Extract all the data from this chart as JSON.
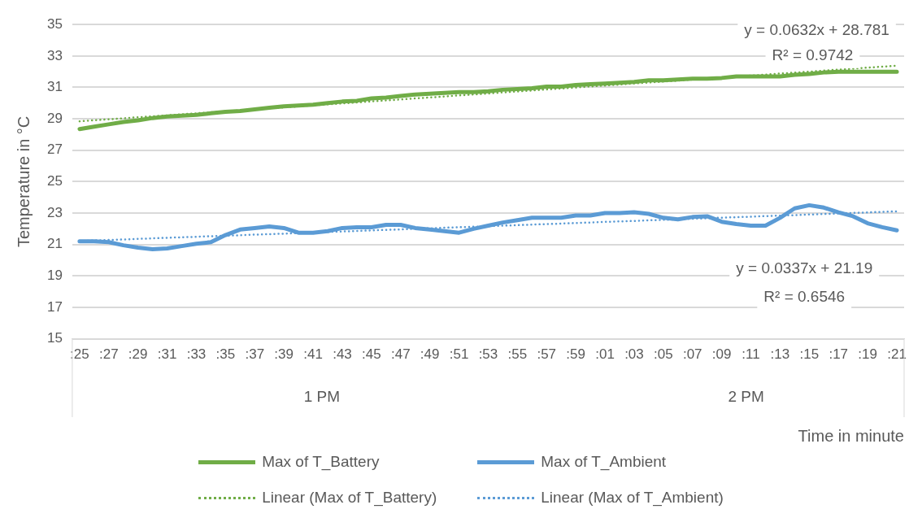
{
  "chart_data": {
    "type": "line",
    "xlabel": "Time in minute",
    "ylabel": "Temperature in °C",
    "categories": [
      ":25",
      null,
      ":27",
      null,
      ":29",
      null,
      ":31",
      null,
      ":33",
      null,
      ":35",
      null,
      ":37",
      null,
      ":39",
      null,
      ":41",
      null,
      ":43",
      null,
      ":45",
      null,
      ":47",
      null,
      ":49",
      null,
      ":51",
      null,
      ":53",
      null,
      ":55",
      null,
      ":57",
      null,
      ":59",
      null,
      ":01",
      null,
      ":03",
      null,
      ":05",
      null,
      ":07",
      null,
      ":09",
      null,
      ":11",
      null,
      ":13",
      null,
      ":15",
      null,
      ":17",
      null,
      ":19",
      null,
      ":21"
    ],
    "series": [
      {
        "name": "Max of T_Battery",
        "color": "#70ad47",
        "line_style": "solid",
        "values": [
          28.35,
          28.5,
          28.65,
          28.8,
          28.9,
          29.05,
          29.15,
          29.2,
          29.25,
          29.35,
          29.45,
          29.5,
          29.6,
          29.7,
          29.8,
          29.85,
          29.9,
          30.0,
          30.1,
          30.15,
          30.3,
          30.35,
          30.45,
          30.55,
          30.6,
          30.65,
          30.7,
          30.7,
          30.75,
          30.85,
          30.9,
          30.95,
          31.05,
          31.05,
          31.15,
          31.2,
          31.25,
          31.3,
          31.35,
          31.45,
          31.45,
          31.5,
          31.55,
          31.55,
          31.6,
          31.7,
          31.7,
          31.7,
          31.7,
          31.8,
          31.85,
          31.95,
          32.0,
          32.0,
          32.0,
          32.0,
          32.0
        ]
      },
      {
        "name": "Max of T_Ambient",
        "color": "#5b9bd5",
        "line_style": "solid",
        "values": [
          21.2,
          21.2,
          21.15,
          20.95,
          20.8,
          20.7,
          20.75,
          20.9,
          21.05,
          21.15,
          21.6,
          21.95,
          22.05,
          22.15,
          22.05,
          21.75,
          21.75,
          21.85,
          22.05,
          22.1,
          22.1,
          22.25,
          22.25,
          22.05,
          21.95,
          21.85,
          21.75,
          22.0,
          22.2,
          22.4,
          22.55,
          22.7,
          22.7,
          22.7,
          22.85,
          22.85,
          23.0,
          23.0,
          23.05,
          22.95,
          22.7,
          22.6,
          22.75,
          22.8,
          22.45,
          22.3,
          22.2,
          22.2,
          22.7,
          23.3,
          23.5,
          23.35,
          23.05,
          22.8,
          22.35,
          22.1,
          21.9
        ]
      },
      {
        "name": "Linear (Max of T_Battery)",
        "color": "#70ad47",
        "line_style": "dotted",
        "values": [
          28.84,
          28.91,
          28.97,
          29.03,
          29.1,
          29.16,
          29.22,
          29.29,
          29.35,
          29.41,
          29.48,
          29.54,
          29.6,
          29.67,
          29.73,
          29.79,
          29.86,
          29.92,
          29.98,
          30.04,
          30.11,
          30.17,
          30.23,
          30.3,
          30.36,
          30.42,
          30.49,
          30.55,
          30.61,
          30.68,
          30.74,
          30.8,
          30.87,
          30.93,
          30.99,
          31.06,
          31.12,
          31.18,
          31.25,
          31.31,
          31.37,
          31.43,
          31.5,
          31.56,
          31.62,
          31.69,
          31.75,
          31.81,
          31.88,
          31.94,
          32.0,
          32.07,
          32.13,
          32.19,
          32.26,
          32.32,
          32.38
        ]
      },
      {
        "name": "Linear (Max of T_Ambient)",
        "color": "#5b9bd5",
        "line_style": "dotted",
        "values": [
          21.22,
          21.26,
          21.29,
          21.32,
          21.36,
          21.39,
          21.43,
          21.46,
          21.49,
          21.53,
          21.56,
          21.59,
          21.63,
          21.66,
          21.69,
          21.73,
          21.76,
          21.8,
          21.83,
          21.86,
          21.9,
          21.93,
          21.96,
          22.0,
          22.03,
          22.07,
          22.1,
          22.13,
          22.17,
          22.2,
          22.23,
          22.27,
          22.3,
          22.33,
          22.37,
          22.4,
          22.44,
          22.47,
          22.5,
          22.54,
          22.57,
          22.6,
          22.64,
          22.67,
          22.71,
          22.74,
          22.77,
          22.81,
          22.84,
          22.87,
          22.91,
          22.94,
          22.98,
          23.01,
          23.04,
          23.08,
          23.11
        ]
      }
    ],
    "ylim": [
      15,
      35
    ],
    "yticks": [
      15,
      17,
      19,
      21,
      23,
      25,
      27,
      29,
      31,
      33,
      35
    ],
    "grid": "y",
    "legend": "bottom",
    "marker": "none",
    "annotations": [
      "y = 0.0632x + 28.781",
      "R² = 0.9742",
      "y = 0.0337x + 21.19",
      "R² = 0.6546",
      "1 PM",
      "2 PM"
    ]
  }
}
